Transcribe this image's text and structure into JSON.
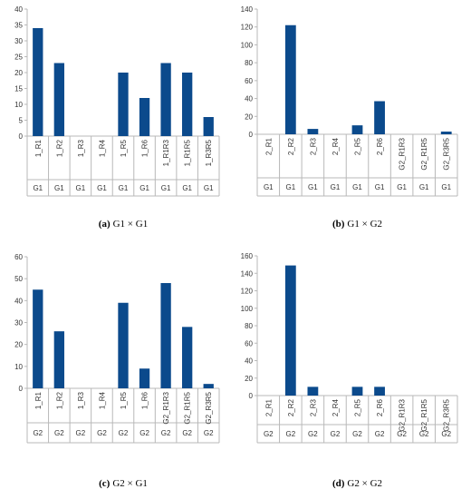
{
  "bar_color": "#0b4a8c",
  "chart_data": [
    {
      "type": "bar",
      "caption_letter": "(a)",
      "caption_text": "G1 × G1",
      "group_label": "G1",
      "categories": [
        "1_R1",
        "1_R2",
        "1_R3",
        "1_R4",
        "1_R5",
        "1_R6",
        "1_R1R3",
        "1_R1R5",
        "1_R3R5"
      ],
      "groups": [
        "G1",
        "G1",
        "G1",
        "G1",
        "G1",
        "G1",
        "G1",
        "G1",
        "G1"
      ],
      "values": [
        34,
        23,
        0,
        0,
        20,
        12,
        23,
        20,
        6
      ],
      "ylim": [
        0,
        40
      ],
      "yticks": [
        0,
        5,
        10,
        15,
        20,
        25,
        30,
        35,
        40
      ],
      "grid": false
    },
    {
      "type": "bar",
      "caption_letter": "(b)",
      "caption_text": "G1 × G2",
      "categories": [
        "2_R1",
        "2_R2",
        "2_R3",
        "2_R4",
        "2_R5",
        "2_R6",
        "G2_R1R3",
        "G2_R1R5",
        "G2_R3R5"
      ],
      "groups": [
        "G1",
        "G1",
        "G1",
        "G1",
        "G1",
        "G1",
        "G1",
        "G1",
        "G1"
      ],
      "values": [
        0,
        122,
        6,
        0,
        10,
        37,
        0,
        0,
        3
      ],
      "ylim": [
        0,
        140
      ],
      "yticks": [
        0,
        20,
        40,
        60,
        80,
        100,
        120,
        140
      ],
      "grid": false
    },
    {
      "type": "bar",
      "caption_letter": "(c)",
      "caption_text": "G2 × G1",
      "categories": [
        "1_R1",
        "1_R2",
        "1_R3",
        "1_R4",
        "1_R5",
        "1_R6",
        "G2_R1R3",
        "G2_R1R5",
        "G2_R3R5"
      ],
      "groups": [
        "G2",
        "G2",
        "G2",
        "G2",
        "G2",
        "G2",
        "G2",
        "G2",
        "G2"
      ],
      "values": [
        45,
        26,
        0,
        0,
        39,
        9,
        48,
        28,
        2
      ],
      "ylim": [
        0,
        60
      ],
      "yticks": [
        0,
        10,
        20,
        30,
        40,
        50,
        60
      ],
      "grid": false
    },
    {
      "type": "bar",
      "caption_letter": "(d)",
      "caption_text": "G2 × G2",
      "categories": [
        "2_R1",
        "2_R2",
        "2_R3",
        "2_R4",
        "2_R5",
        "2_R6",
        "G2_R1R3",
        "G2_R1R5",
        "G2_R3R5"
      ],
      "groups": [
        "G2",
        "G2",
        "G2",
        "G2",
        "G2",
        "G2",
        "G2",
        "G2",
        "G2"
      ],
      "values": [
        0,
        149,
        10,
        0,
        10,
        10,
        0,
        0,
        0
      ],
      "ylim": [
        0,
        160
      ],
      "yticks": [
        0,
        20,
        40,
        60,
        80,
        100,
        120,
        140,
        160
      ],
      "grid": false
    }
  ]
}
